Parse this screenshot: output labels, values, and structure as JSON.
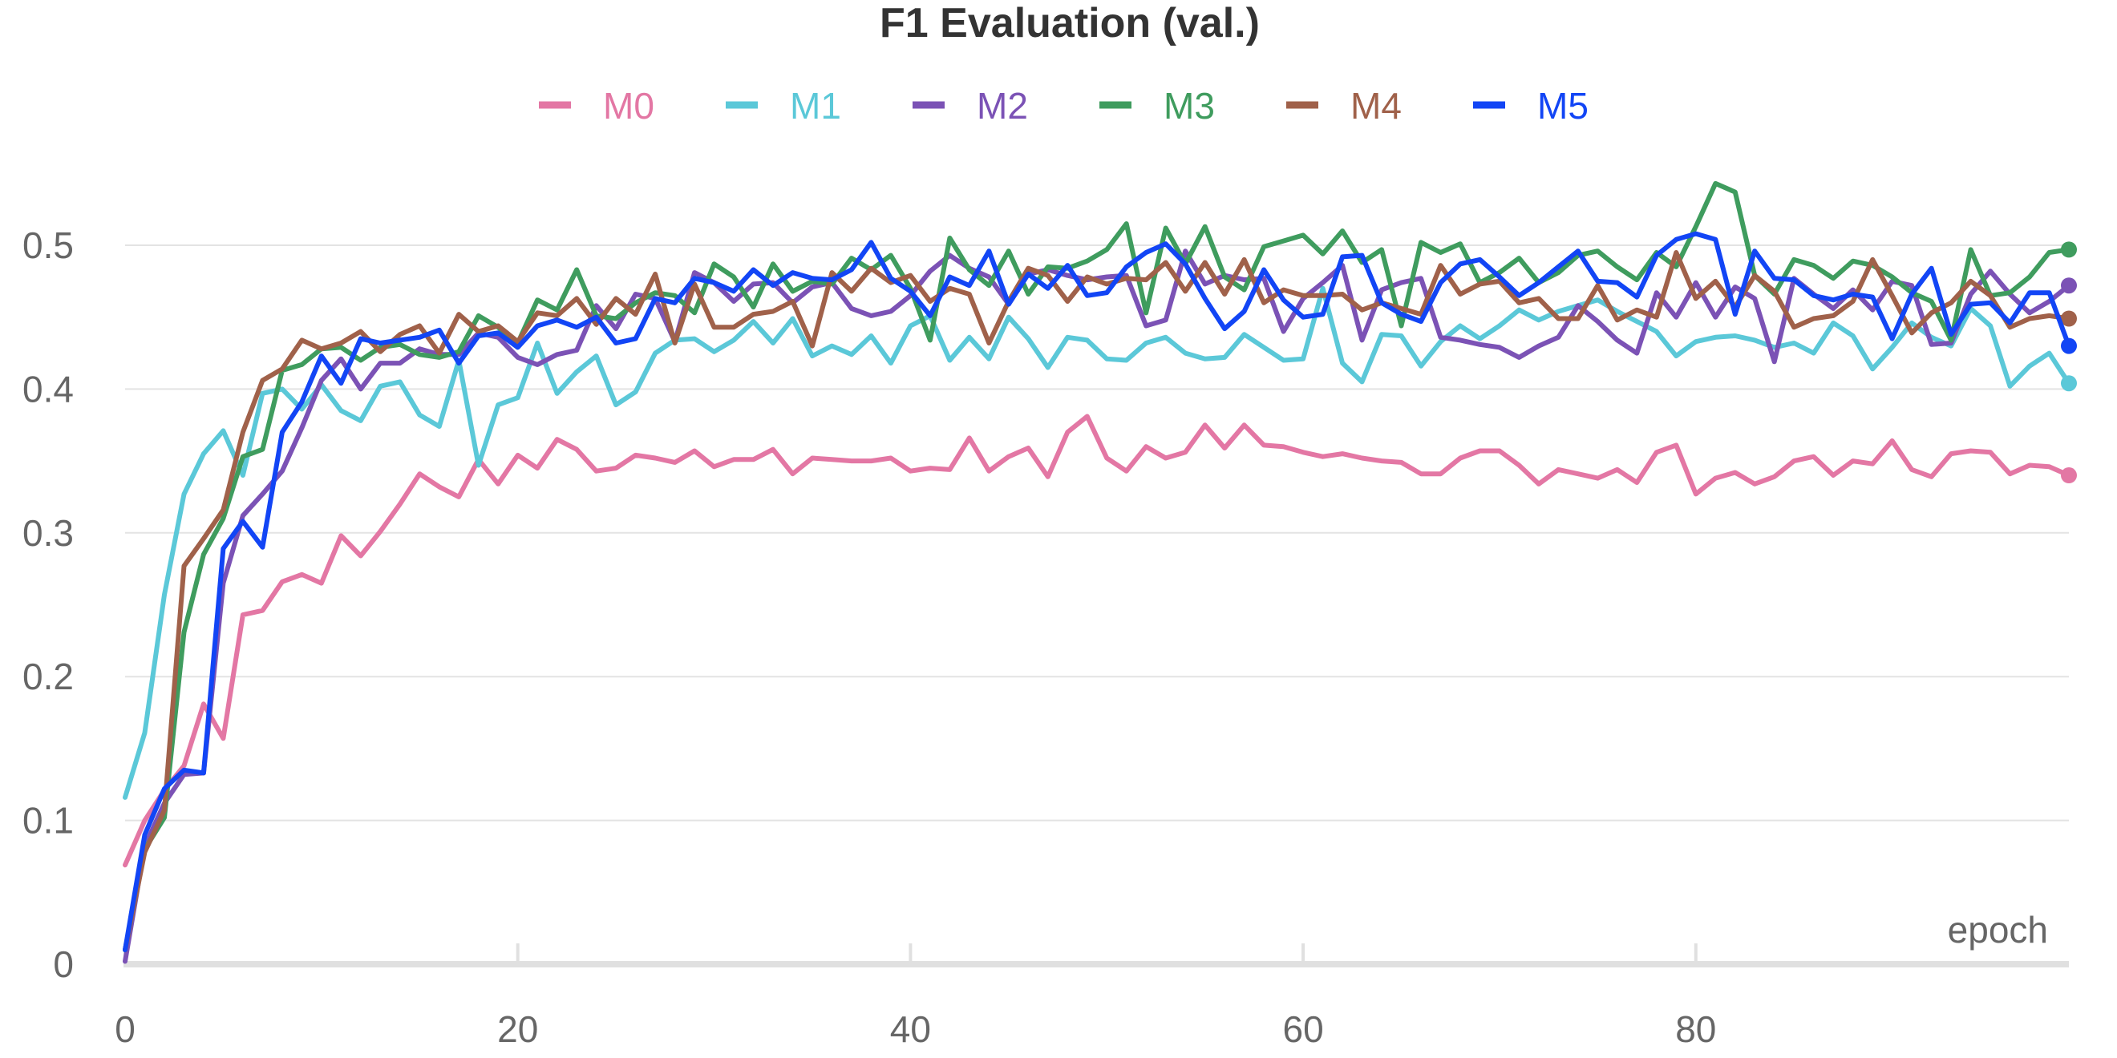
{
  "chart_data": {
    "type": "line",
    "title": "F1 Evaluation (val.)",
    "xlabel": "epoch",
    "ylabel": "",
    "xlim": [
      0,
      99
    ],
    "ylim": [
      0,
      0.55
    ],
    "x_ticks": [
      0,
      20,
      40,
      60,
      80
    ],
    "y_ticks": [
      0,
      0.1,
      0.2,
      0.3,
      0.4,
      0.5
    ],
    "y_tick_labels": [
      "0",
      "0.1",
      "0.2",
      "0.3",
      "0.4",
      "0.5"
    ],
    "grid": true,
    "legend_position": "top-center",
    "series": [
      {
        "name": "M0",
        "color": "#e377a4",
        "values": [
          0.069,
          0.1,
          0.121,
          0.138,
          0.181,
          0.157,
          0.243,
          0.246,
          0.266,
          0.271,
          0.265,
          0.298,
          0.284,
          0.301,
          0.32,
          0.341,
          0.332,
          0.325,
          0.351,
          0.334,
          0.354,
          0.345,
          0.365,
          0.358,
          0.343,
          0.345,
          0.354,
          0.352,
          0.349,
          0.357,
          0.346,
          0.351,
          0.351,
          0.358,
          0.341,
          0.352,
          0.351,
          0.35,
          0.35,
          0.352,
          0.343,
          0.345,
          0.344,
          0.366,
          0.343,
          0.353,
          0.359,
          0.339,
          0.37,
          0.381,
          0.352,
          0.343,
          0.36,
          0.352,
          0.356,
          0.375,
          0.359,
          0.375,
          0.361,
          0.36,
          0.356,
          0.353,
          0.355,
          0.352,
          0.35,
          0.349,
          0.341,
          0.341,
          0.352,
          0.357,
          0.357,
          0.347,
          0.334,
          0.344,
          0.341,
          0.338,
          0.344,
          0.335,
          0.356,
          0.361,
          0.327,
          0.338,
          0.342,
          0.334,
          0.339,
          0.35,
          0.353,
          0.34,
          0.35,
          0.348,
          0.364,
          0.344,
          0.339,
          0.355,
          0.357,
          0.356,
          0.341,
          0.347,
          0.346,
          0.34
        ]
      },
      {
        "name": "M1",
        "color": "#5bc8d8",
        "values": [
          0.116,
          0.161,
          0.257,
          0.327,
          0.355,
          0.371,
          0.34,
          0.397,
          0.4,
          0.386,
          0.403,
          0.385,
          0.378,
          0.402,
          0.405,
          0.382,
          0.374,
          0.42,
          0.347,
          0.389,
          0.394,
          0.432,
          0.397,
          0.412,
          0.423,
          0.389,
          0.398,
          0.425,
          0.434,
          0.435,
          0.426,
          0.434,
          0.447,
          0.432,
          0.449,
          0.423,
          0.43,
          0.424,
          0.437,
          0.418,
          0.444,
          0.451,
          0.42,
          0.436,
          0.421,
          0.45,
          0.435,
          0.415,
          0.436,
          0.434,
          0.421,
          0.42,
          0.432,
          0.436,
          0.425,
          0.421,
          0.422,
          0.438,
          0.429,
          0.42,
          0.421,
          0.47,
          0.418,
          0.405,
          0.438,
          0.437,
          0.416,
          0.433,
          0.444,
          0.435,
          0.444,
          0.455,
          0.448,
          0.454,
          0.458,
          0.462,
          0.454,
          0.447,
          0.44,
          0.423,
          0.433,
          0.436,
          0.437,
          0.434,
          0.429,
          0.432,
          0.425,
          0.446,
          0.437,
          0.414,
          0.429,
          0.446,
          0.436,
          0.43,
          0.456,
          0.444,
          0.402,
          0.416,
          0.425,
          0.404
        ]
      },
      {
        "name": "M2",
        "color": "#7b52b5",
        "values": [
          0.002,
          0.082,
          0.112,
          0.132,
          0.133,
          0.265,
          0.312,
          0.327,
          0.343,
          0.373,
          0.406,
          0.421,
          0.4,
          0.418,
          0.418,
          0.428,
          0.424,
          0.424,
          0.439,
          0.436,
          0.422,
          0.417,
          0.424,
          0.427,
          0.458,
          0.442,
          0.466,
          0.463,
          0.433,
          0.481,
          0.474,
          0.461,
          0.473,
          0.474,
          0.46,
          0.471,
          0.474,
          0.456,
          0.451,
          0.454,
          0.465,
          0.482,
          0.493,
          0.484,
          0.478,
          0.459,
          0.48,
          0.483,
          0.479,
          0.476,
          0.478,
          0.479,
          0.444,
          0.448,
          0.496,
          0.473,
          0.479,
          0.476,
          0.477,
          0.44,
          0.463,
          0.474,
          0.486,
          0.434,
          0.469,
          0.474,
          0.477,
          0.436,
          0.434,
          0.431,
          0.429,
          0.422,
          0.43,
          0.436,
          0.458,
          0.447,
          0.434,
          0.425,
          0.467,
          0.45,
          0.474,
          0.45,
          0.471,
          0.463,
          0.419,
          0.477,
          0.466,
          0.456,
          0.469,
          0.455,
          0.475,
          0.472,
          0.431,
          0.432,
          0.466,
          0.482,
          0.466,
          0.453,
          0.461,
          0.472
        ]
      },
      {
        "name": "M3",
        "color": "#3f9c5e",
        "values": [
          0.01,
          0.08,
          0.102,
          0.231,
          0.285,
          0.31,
          0.353,
          0.358,
          0.413,
          0.417,
          0.428,
          0.429,
          0.42,
          0.429,
          0.431,
          0.424,
          0.422,
          0.426,
          0.451,
          0.443,
          0.432,
          0.462,
          0.455,
          0.483,
          0.451,
          0.449,
          0.46,
          0.467,
          0.465,
          0.453,
          0.487,
          0.478,
          0.457,
          0.487,
          0.468,
          0.475,
          0.473,
          0.491,
          0.483,
          0.493,
          0.47,
          0.434,
          0.505,
          0.483,
          0.472,
          0.496,
          0.466,
          0.485,
          0.484,
          0.489,
          0.497,
          0.515,
          0.453,
          0.512,
          0.487,
          0.513,
          0.478,
          0.469,
          0.499,
          0.503,
          0.507,
          0.494,
          0.51,
          0.488,
          0.497,
          0.444,
          0.502,
          0.495,
          0.501,
          0.474,
          0.481,
          0.491,
          0.474,
          0.481,
          0.493,
          0.496,
          0.485,
          0.476,
          0.495,
          0.485,
          0.513,
          0.543,
          0.537,
          0.479,
          0.466,
          0.49,
          0.486,
          0.477,
          0.489,
          0.486,
          0.478,
          0.467,
          0.461,
          0.434,
          0.497,
          0.465,
          0.467,
          0.478,
          0.495,
          0.497
        ]
      },
      {
        "name": "M4",
        "color": "#a0614a",
        "values": [
          0.01,
          0.078,
          0.107,
          0.277,
          0.296,
          0.316,
          0.37,
          0.406,
          0.414,
          0.434,
          0.428,
          0.432,
          0.44,
          0.426,
          0.438,
          0.444,
          0.425,
          0.452,
          0.44,
          0.444,
          0.433,
          0.453,
          0.451,
          0.463,
          0.445,
          0.463,
          0.452,
          0.48,
          0.432,
          0.473,
          0.443,
          0.443,
          0.452,
          0.454,
          0.461,
          0.43,
          0.481,
          0.468,
          0.484,
          0.474,
          0.479,
          0.461,
          0.47,
          0.466,
          0.432,
          0.461,
          0.484,
          0.479,
          0.461,
          0.478,
          0.473,
          0.477,
          0.476,
          0.488,
          0.468,
          0.488,
          0.466,
          0.49,
          0.46,
          0.469,
          0.465,
          0.465,
          0.466,
          0.455,
          0.46,
          0.456,
          0.452,
          0.486,
          0.466,
          0.473,
          0.475,
          0.46,
          0.463,
          0.449,
          0.449,
          0.472,
          0.448,
          0.455,
          0.45,
          0.495,
          0.463,
          0.475,
          0.457,
          0.479,
          0.468,
          0.443,
          0.449,
          0.451,
          0.461,
          0.49,
          0.465,
          0.439,
          0.453,
          0.46,
          0.475,
          0.465,
          0.443,
          0.449,
          0.451,
          0.449
        ]
      },
      {
        "name": "M5",
        "color": "#1245f5",
        "values": [
          0.01,
          0.09,
          0.122,
          0.135,
          0.133,
          0.289,
          0.308,
          0.29,
          0.37,
          0.391,
          0.423,
          0.404,
          0.435,
          0.432,
          0.434,
          0.436,
          0.441,
          0.418,
          0.437,
          0.439,
          0.429,
          0.444,
          0.448,
          0.443,
          0.45,
          0.432,
          0.435,
          0.463,
          0.46,
          0.477,
          0.474,
          0.468,
          0.483,
          0.472,
          0.481,
          0.477,
          0.476,
          0.483,
          0.502,
          0.477,
          0.468,
          0.451,
          0.478,
          0.472,
          0.496,
          0.459,
          0.48,
          0.47,
          0.486,
          0.465,
          0.467,
          0.485,
          0.495,
          0.501,
          0.487,
          0.463,
          0.442,
          0.454,
          0.483,
          0.462,
          0.45,
          0.452,
          0.492,
          0.493,
          0.46,
          0.452,
          0.447,
          0.474,
          0.487,
          0.49,
          0.478,
          0.465,
          0.474,
          0.485,
          0.496,
          0.475,
          0.474,
          0.464,
          0.493,
          0.504,
          0.508,
          0.504,
          0.452,
          0.496,
          0.477,
          0.476,
          0.465,
          0.462,
          0.466,
          0.464,
          0.435,
          0.466,
          0.484,
          0.438,
          0.459,
          0.46,
          0.446,
          0.467,
          0.467,
          0.43
        ]
      }
    ]
  }
}
